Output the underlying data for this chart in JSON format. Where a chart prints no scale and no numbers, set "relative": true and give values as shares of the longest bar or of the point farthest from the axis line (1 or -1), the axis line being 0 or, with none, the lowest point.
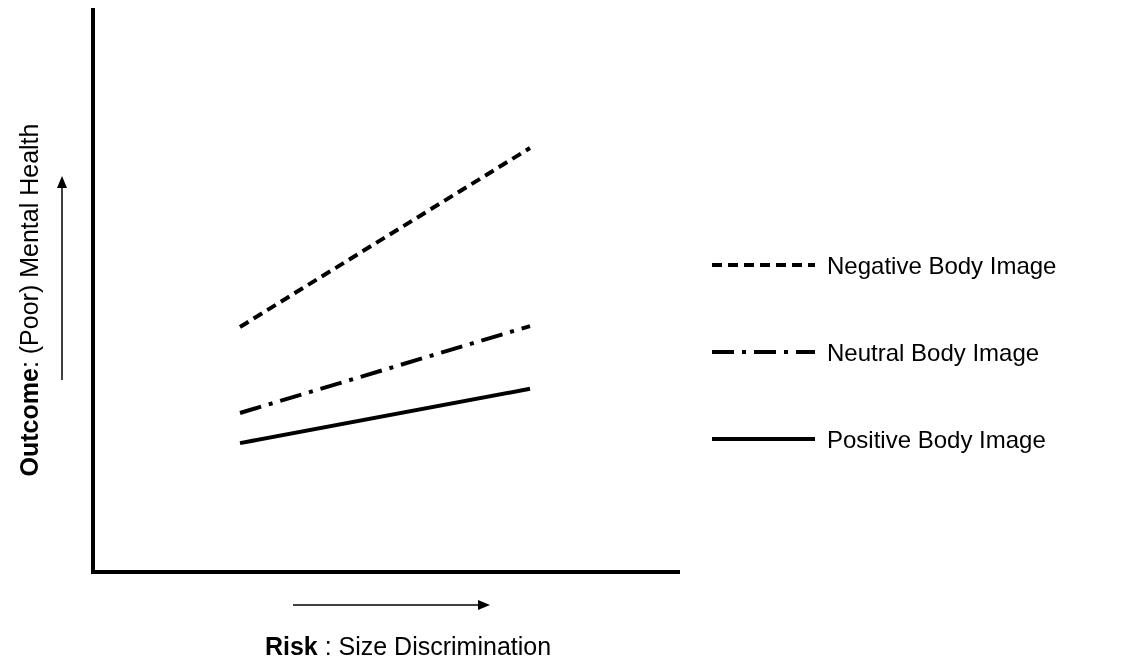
{
  "chart_data": {
    "type": "line",
    "relative": true,
    "categories": [
      null,
      null
    ],
    "xlabel": "Risk : Size Discrimination",
    "ylabel": "Outcome: (Poor) Mental Health",
    "legend": "right",
    "marker": "none",
    "series": [
      {
        "name": "Negative Body Image",
        "color": "#000000",
        "line_style": "dashed",
        "values": [
          0.578,
          1
        ]
      },
      {
        "name": "Neutral Body Image",
        "color": "#000000",
        "line_style": "dashdot",
        "values": [
          0.375,
          0.58
        ]
      },
      {
        "name": "Positive Body Image",
        "color": "#000000",
        "line_style": "solid",
        "values": [
          0.304,
          0.432
        ]
      }
    ]
  }
}
